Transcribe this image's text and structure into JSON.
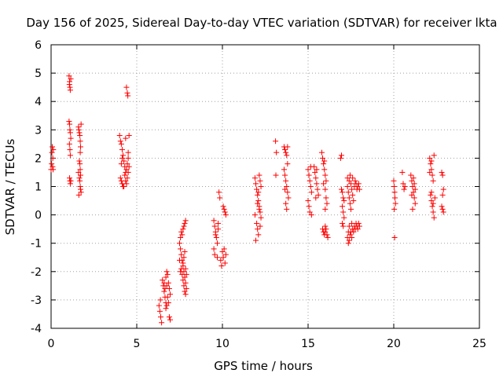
{
  "chart_data": {
    "type": "scatter",
    "title": "Day 156 of 2025, Sidereal Day-to-day VTEC variation (SDTVAR) for receiver lkta",
    "xlabel": "GPS time / hours",
    "ylabel": "SDTVAR / TECUs",
    "xlim": [
      0,
      25
    ],
    "ylim": [
      -4,
      6
    ],
    "xticks": [
      "0",
      "5",
      "10",
      "15",
      "20",
      "25"
    ],
    "yticks": [
      "-4",
      "-3",
      "-2",
      "-1",
      "0",
      "1",
      "2",
      "3",
      "4",
      "5",
      "6"
    ],
    "grid": true,
    "marker": "+",
    "marker_color": "#ff0000",
    "series": [
      {
        "name": "SDTVAR",
        "points": [
          [
            0.0,
            1.6
          ],
          [
            0.03,
            1.8
          ],
          [
            0.05,
            2.2
          ],
          [
            0.07,
            2.4
          ],
          [
            0.09,
            1.7
          ],
          [
            0.1,
            2.0
          ],
          [
            0.12,
            1.6
          ],
          [
            0.13,
            2.3
          ],
          [
            1.05,
            4.9
          ],
          [
            1.08,
            4.7
          ],
          [
            1.1,
            4.5
          ],
          [
            1.12,
            4.4
          ],
          [
            1.15,
            4.8
          ],
          [
            1.07,
            4.6
          ],
          [
            1.05,
            3.3
          ],
          [
            1.08,
            3.2
          ],
          [
            1.1,
            3.0
          ],
          [
            1.12,
            2.9
          ],
          [
            1.15,
            2.7
          ],
          [
            1.07,
            2.5
          ],
          [
            1.1,
            2.3
          ],
          [
            1.12,
            2.1
          ],
          [
            1.08,
            1.3
          ],
          [
            1.1,
            1.2
          ],
          [
            1.12,
            1.1
          ],
          [
            1.15,
            1.2
          ],
          [
            1.6,
            3.1
          ],
          [
            1.62,
            3.0
          ],
          [
            1.65,
            2.9
          ],
          [
            1.68,
            2.8
          ],
          [
            1.7,
            2.6
          ],
          [
            1.72,
            2.4
          ],
          [
            1.7,
            2.2
          ],
          [
            1.65,
            1.9
          ],
          [
            1.68,
            1.8
          ],
          [
            1.7,
            1.6
          ],
          [
            1.72,
            1.4
          ],
          [
            1.65,
            1.3
          ],
          [
            1.68,
            1.2
          ],
          [
            1.7,
            1.0
          ],
          [
            1.72,
            0.9
          ],
          [
            1.75,
            0.8
          ],
          [
            1.62,
            0.7
          ],
          [
            1.75,
            3.2
          ],
          [
            1.6,
            1.5
          ],
          [
            4.0,
            2.8
          ],
          [
            4.05,
            2.6
          ],
          [
            4.1,
            2.5
          ],
          [
            4.15,
            2.3
          ],
          [
            4.2,
            2.1
          ],
          [
            4.25,
            1.9
          ],
          [
            4.3,
            1.7
          ],
          [
            4.35,
            1.5
          ],
          [
            4.05,
            1.3
          ],
          [
            4.1,
            1.2
          ],
          [
            4.15,
            1.1
          ],
          [
            4.2,
            1.0
          ],
          [
            4.3,
            1.4
          ],
          [
            4.4,
            1.6
          ],
          [
            4.45,
            1.8
          ],
          [
            4.5,
            2.0
          ],
          [
            4.35,
            1.2
          ],
          [
            4.4,
            1.1
          ],
          [
            4.45,
            1.3
          ],
          [
            4.5,
            1.5
          ],
          [
            4.55,
            1.7
          ],
          [
            4.5,
            2.2
          ],
          [
            4.35,
            2.7
          ],
          [
            4.55,
            2.8
          ],
          [
            4.25,
            1.0
          ],
          [
            4.1,
            1.8
          ],
          [
            4.15,
            2.0
          ],
          [
            4.4,
            4.5
          ],
          [
            4.45,
            4.3
          ],
          [
            4.48,
            4.2
          ],
          [
            6.3,
            -3.2
          ],
          [
            6.35,
            -3.4
          ],
          [
            6.4,
            -3.6
          ],
          [
            6.45,
            -3.8
          ],
          [
            6.38,
            -3.0
          ],
          [
            6.5,
            -2.3
          ],
          [
            6.55,
            -2.5
          ],
          [
            6.6,
            -2.7
          ],
          [
            6.65,
            -2.9
          ],
          [
            6.7,
            -3.1
          ],
          [
            6.75,
            -3.2
          ],
          [
            6.6,
            -2.4
          ],
          [
            6.7,
            -2.2
          ],
          [
            6.8,
            -2.1
          ],
          [
            6.85,
            -2.4
          ],
          [
            6.9,
            -2.6
          ],
          [
            6.95,
            -2.8
          ],
          [
            6.65,
            -2.6
          ],
          [
            6.75,
            -2.5
          ],
          [
            6.8,
            -2.9
          ],
          [
            6.85,
            -3.1
          ],
          [
            6.9,
            -3.6
          ],
          [
            6.95,
            -3.7
          ],
          [
            6.75,
            -2.0
          ],
          [
            6.7,
            -3.3
          ],
          [
            7.5,
            -1.0
          ],
          [
            7.55,
            -1.2
          ],
          [
            7.6,
            -1.4
          ],
          [
            7.65,
            -1.6
          ],
          [
            7.7,
            -1.8
          ],
          [
            7.75,
            -2.0
          ],
          [
            7.8,
            -2.2
          ],
          [
            7.85,
            -2.4
          ],
          [
            7.6,
            -1.9
          ],
          [
            7.65,
            -2.1
          ],
          [
            7.7,
            -2.3
          ],
          [
            7.75,
            -2.5
          ],
          [
            7.8,
            -2.7
          ],
          [
            7.85,
            -2.8
          ],
          [
            7.9,
            -2.6
          ],
          [
            7.55,
            -0.8
          ],
          [
            7.6,
            -0.6
          ],
          [
            7.65,
            -0.7
          ],
          [
            7.7,
            -0.5
          ],
          [
            7.75,
            -0.4
          ],
          [
            7.8,
            -0.3
          ],
          [
            7.85,
            -0.2
          ],
          [
            7.7,
            -1.7
          ],
          [
            7.75,
            -1.5
          ],
          [
            7.8,
            -1.3
          ],
          [
            7.85,
            -1.9
          ],
          [
            7.9,
            -2.1
          ],
          [
            7.5,
            -1.6
          ],
          [
            7.55,
            -2.0
          ],
          [
            9.5,
            -0.2
          ],
          [
            9.55,
            -0.4
          ],
          [
            9.6,
            -0.6
          ],
          [
            9.65,
            -0.8
          ],
          [
            9.7,
            -1.0
          ],
          [
            9.75,
            -0.3
          ],
          [
            9.5,
            -1.2
          ],
          [
            9.55,
            -1.4
          ],
          [
            9.6,
            -0.7
          ],
          [
            9.7,
            -1.5
          ],
          [
            9.75,
            -0.5
          ],
          [
            9.8,
            0.8
          ],
          [
            9.85,
            0.6
          ],
          [
            9.9,
            -1.6
          ],
          [
            9.95,
            -1.8
          ],
          [
            10.1,
            0.2
          ],
          [
            10.15,
            0.1
          ],
          [
            10.2,
            0.0
          ],
          [
            10.05,
            0.3
          ],
          [
            10.0,
            -1.3
          ],
          [
            10.05,
            -1.5
          ],
          [
            10.1,
            -1.2
          ],
          [
            10.15,
            -1.7
          ],
          [
            10.2,
            -1.4
          ],
          [
            11.9,
            1.3
          ],
          [
            11.95,
            1.1
          ],
          [
            12.0,
            0.9
          ],
          [
            12.05,
            0.7
          ],
          [
            12.1,
            0.5
          ],
          [
            12.15,
            0.3
          ],
          [
            12.2,
            0.1
          ],
          [
            12.25,
            -0.1
          ],
          [
            12.0,
            -0.3
          ],
          [
            12.05,
            -0.5
          ],
          [
            12.1,
            -0.7
          ],
          [
            11.95,
            -0.9
          ],
          [
            12.15,
            1.4
          ],
          [
            12.2,
            1.2
          ],
          [
            12.25,
            1.0
          ],
          [
            12.1,
            0.8
          ],
          [
            12.05,
            0.4
          ],
          [
            12.15,
            0.2
          ],
          [
            11.9,
            0.0
          ],
          [
            12.2,
            -0.4
          ],
          [
            13.1,
            2.6
          ],
          [
            13.15,
            2.2
          ],
          [
            13.12,
            1.4
          ],
          [
            13.6,
            2.4
          ],
          [
            13.65,
            2.3
          ],
          [
            13.7,
            2.2
          ],
          [
            13.75,
            2.1
          ],
          [
            13.8,
            2.4
          ],
          [
            13.6,
            1.6
          ],
          [
            13.65,
            1.4
          ],
          [
            13.7,
            1.2
          ],
          [
            13.75,
            1.0
          ],
          [
            13.8,
            0.8
          ],
          [
            13.85,
            0.6
          ],
          [
            13.7,
            0.4
          ],
          [
            13.75,
            0.2
          ],
          [
            13.8,
            1.8
          ],
          [
            13.65,
            0.9
          ],
          [
            15.0,
            1.6
          ],
          [
            15.05,
            1.4
          ],
          [
            15.1,
            1.2
          ],
          [
            15.15,
            1.0
          ],
          [
            15.2,
            0.8
          ],
          [
            15.0,
            0.5
          ],
          [
            15.05,
            0.3
          ],
          [
            15.1,
            0.1
          ],
          [
            15.15,
            1.7
          ],
          [
            15.2,
            0.0
          ],
          [
            15.4,
            1.5
          ],
          [
            15.45,
            1.3
          ],
          [
            15.5,
            1.1
          ],
          [
            15.55,
            0.9
          ],
          [
            15.6,
            0.7
          ],
          [
            15.35,
            1.7
          ],
          [
            15.45,
            0.6
          ],
          [
            15.5,
            1.6
          ],
          [
            15.8,
            2.2
          ],
          [
            15.85,
            2.0
          ],
          [
            15.9,
            1.8
          ],
          [
            15.95,
            1.6
          ],
          [
            16.0,
            1.4
          ],
          [
            16.05,
            1.2
          ],
          [
            15.9,
            1.1
          ],
          [
            16.0,
            0.9
          ],
          [
            16.05,
            0.6
          ],
          [
            16.1,
            0.4
          ],
          [
            16.0,
            0.2
          ],
          [
            15.95,
            1.9
          ],
          [
            15.85,
            -0.5
          ],
          [
            15.9,
            -0.6
          ],
          [
            15.95,
            -0.7
          ],
          [
            16.0,
            -0.6
          ],
          [
            16.05,
            -0.5
          ],
          [
            16.1,
            -0.7
          ],
          [
            16.15,
            -0.8
          ],
          [
            16.0,
            -0.4
          ],
          [
            16.9,
            2.0
          ],
          [
            16.95,
            2.1
          ],
          [
            17.0,
            0.8
          ],
          [
            17.05,
            0.6
          ],
          [
            17.0,
            0.3
          ],
          [
            17.05,
            0.1
          ],
          [
            17.1,
            -0.1
          ],
          [
            17.0,
            -0.3
          ],
          [
            17.05,
            -0.4
          ],
          [
            17.1,
            0.5
          ],
          [
            16.95,
            0.9
          ],
          [
            17.3,
            1.0
          ],
          [
            17.35,
            0.8
          ],
          [
            17.4,
            0.6
          ],
          [
            17.45,
            0.4
          ],
          [
            17.5,
            0.2
          ],
          [
            17.3,
            1.3
          ],
          [
            17.4,
            1.2
          ],
          [
            17.5,
            1.1
          ],
          [
            17.55,
            0.9
          ],
          [
            17.6,
            0.7
          ],
          [
            17.65,
            0.5
          ],
          [
            17.7,
            1.0
          ],
          [
            17.75,
            1.2
          ],
          [
            17.8,
            1.1
          ],
          [
            17.85,
            0.9
          ],
          [
            17.9,
            1.0
          ],
          [
            17.95,
            1.1
          ],
          [
            18.0,
            0.9
          ],
          [
            17.6,
            1.3
          ],
          [
            17.45,
            1.4
          ],
          [
            17.3,
            -0.8
          ],
          [
            17.35,
            -1.0
          ],
          [
            17.4,
            -0.9
          ],
          [
            17.45,
            -0.7
          ],
          [
            17.5,
            -0.6
          ],
          [
            17.55,
            -0.8
          ],
          [
            17.6,
            -0.5
          ],
          [
            17.65,
            -0.6
          ],
          [
            17.7,
            -0.4
          ],
          [
            17.75,
            -0.5
          ],
          [
            17.8,
            -0.3
          ],
          [
            17.85,
            -0.4
          ],
          [
            17.9,
            -0.5
          ],
          [
            17.95,
            -0.3
          ],
          [
            18.0,
            -0.4
          ],
          [
            17.35,
            -0.6
          ],
          [
            17.4,
            -0.4
          ],
          [
            17.55,
            -0.3
          ],
          [
            20.0,
            1.2
          ],
          [
            20.02,
            1.0
          ],
          [
            20.05,
            0.8
          ],
          [
            20.07,
            0.6
          ],
          [
            20.1,
            0.4
          ],
          [
            20.03,
            0.2
          ],
          [
            20.05,
            -0.8
          ],
          [
            20.5,
            1.5
          ],
          [
            20.55,
            1.1
          ],
          [
            20.6,
            0.9
          ],
          [
            20.65,
            1.0
          ],
          [
            21.0,
            1.4
          ],
          [
            21.05,
            1.2
          ],
          [
            21.1,
            1.0
          ],
          [
            21.15,
            0.8
          ],
          [
            21.2,
            0.6
          ],
          [
            21.25,
            0.4
          ],
          [
            21.1,
            0.2
          ],
          [
            21.15,
            1.3
          ],
          [
            21.2,
            1.1
          ],
          [
            21.25,
            0.9
          ],
          [
            21.05,
            0.7
          ],
          [
            22.1,
            2.0
          ],
          [
            22.15,
            1.8
          ],
          [
            22.2,
            1.6
          ],
          [
            22.25,
            1.4
          ],
          [
            22.3,
            1.2
          ],
          [
            22.35,
            2.1
          ],
          [
            22.2,
            1.9
          ],
          [
            22.1,
            1.5
          ],
          [
            22.15,
            0.7
          ],
          [
            22.2,
            0.5
          ],
          [
            22.25,
            0.3
          ],
          [
            22.3,
            0.1
          ],
          [
            22.35,
            -0.1
          ],
          [
            22.4,
            0.6
          ],
          [
            22.2,
            0.8
          ],
          [
            22.3,
            0.4
          ],
          [
            22.8,
            1.5
          ],
          [
            22.85,
            1.4
          ],
          [
            22.9,
            0.9
          ],
          [
            22.85,
            0.7
          ],
          [
            22.8,
            0.3
          ],
          [
            22.85,
            0.2
          ],
          [
            22.9,
            0.1
          ]
        ]
      }
    ]
  }
}
